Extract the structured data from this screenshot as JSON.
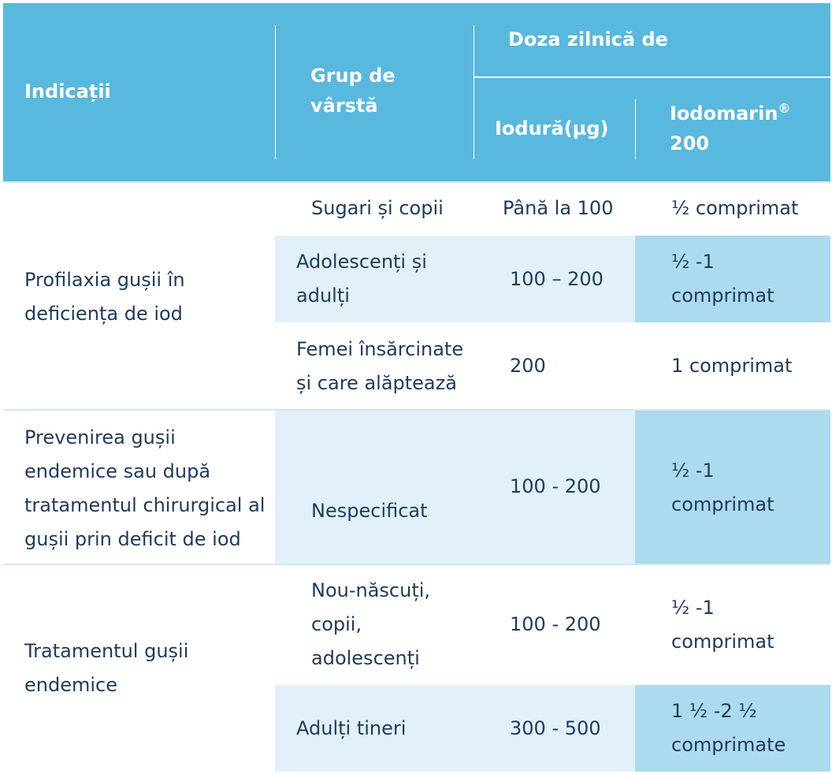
{
  "header": {
    "indications": "Indicații",
    "age_group": "Grup de\nvârstă",
    "daily_dose": "Doza zilnică de",
    "iodide": "Iodură(µg)",
    "iodomarin": "Iodomarin",
    "iodomarin_reg": "®",
    "iodomarin_dose": "200"
  },
  "rows": [
    {
      "indication": "Profilaxia gușii în\ndeficiența de iod",
      "sub": [
        {
          "age": "Sugari și copii",
          "iodide": "Până la 100",
          "tablets": "½ comprimat"
        },
        {
          "age": "Adolescenți și\nadulți",
          "iodide": "100 – 200",
          "tablets": "½ -1\ncomprimat"
        },
        {
          "age": "Femei însărcinate\nși care alăptează",
          "iodide": "200",
          "tablets": "1 comprimat"
        }
      ]
    },
    {
      "indication": "Prevenirea gușii\nendemice sau  după\ntratamentul chirurgical al\ngușii prin deficit de iod",
      "sub": [
        {
          "age": "Nespecificat",
          "iodide": "100 - 200",
          "tablets": "½ -1\ncomprimat"
        }
      ]
    },
    {
      "indication": "Tratamentul gușii\nendemice",
      "sub": [
        {
          "age": "Nou-născuți,\ncopii,\nadolescenți",
          "iodide": "100 - 200",
          "tablets": "½ -1\ncomprimat"
        },
        {
          "age": "Adulți tineri",
          "iodide": "300 - 500",
          "tablets": "1 ½ -2 ½\ncomprimate"
        }
      ]
    }
  ]
}
